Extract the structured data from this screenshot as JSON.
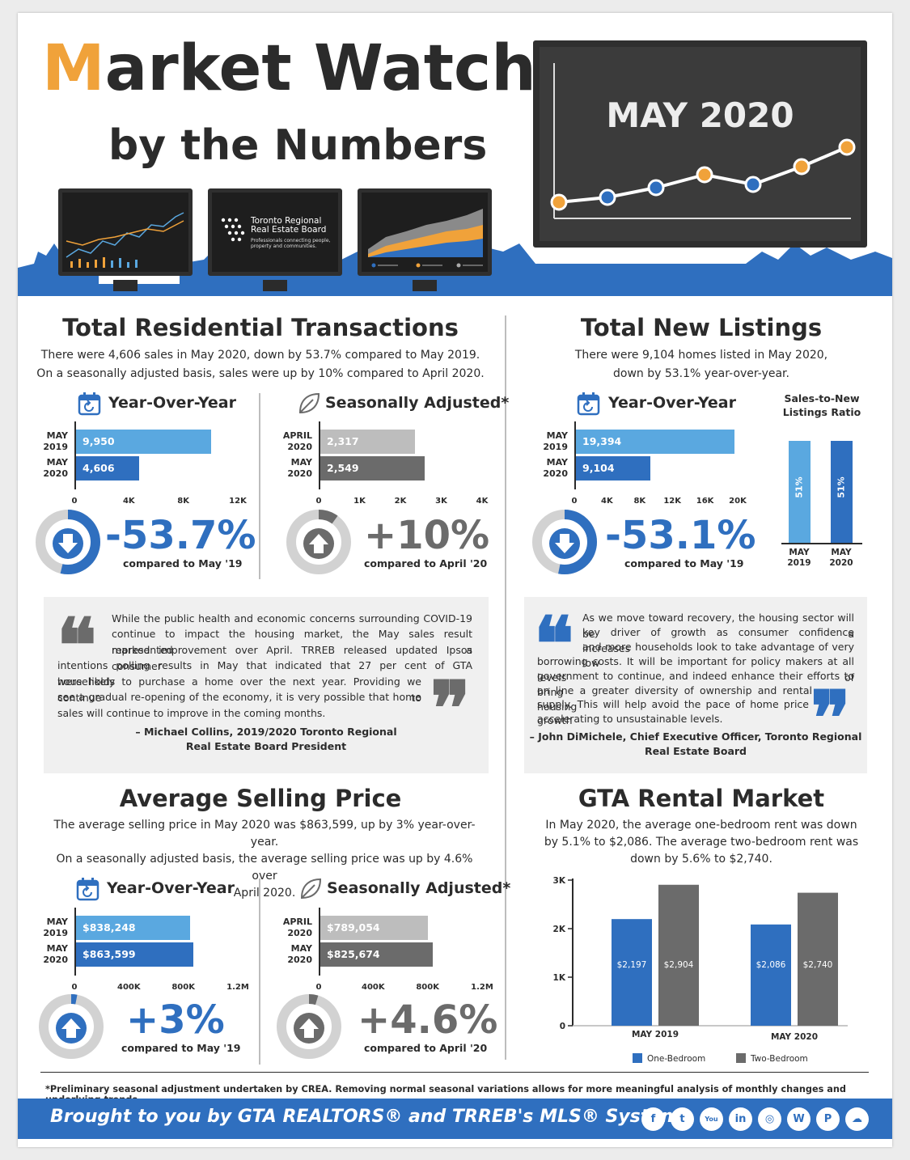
{
  "header": {
    "title_m": "M",
    "title_rest": "arket Watch",
    "subtitle": "by the Numbers",
    "month": "MAY 2020",
    "trreb_name_1": "Toronto Regional",
    "trreb_name_2": "Real Estate Board",
    "trreb_tagline_1": "Professionals connecting people,",
    "trreb_tagline_2": "property and communities."
  },
  "colors": {
    "blue": "#2f6fbf",
    "light_blue": "#5aa8e0",
    "orange": "#f0a23a",
    "dark": "#2b2b2b",
    "gray": "#6b6b6b",
    "light_gray": "#bdbdbd"
  },
  "transactions": {
    "title": "Total Residential Transactions",
    "text1": "There were 4,606 sales in May 2020, down by 53.7% compared to May 2019.",
    "text2": "On a seasonally adjusted basis, sales were up by 10% compared to April 2020.",
    "yoy": {
      "heading": "Year-Over-Year",
      "rows": [
        {
          "label1": "MAY",
          "label2": "2019",
          "value": 9950,
          "display": "9,950"
        },
        {
          "label1": "MAY",
          "label2": "2020",
          "value": 4606,
          "display": "4,606"
        }
      ],
      "ticks": [
        "0",
        "4K",
        "8K",
        "12K"
      ],
      "max": 12000,
      "pct": "-53.7%",
      "pct_value": 53.7,
      "compare": "compared to May '19"
    },
    "sa": {
      "heading": "Seasonally Adjusted*",
      "rows": [
        {
          "label1": "APRIL",
          "label2": "2020",
          "value": 2317,
          "display": "2,317"
        },
        {
          "label1": "MAY",
          "label2": "2020",
          "value": 2549,
          "display": "2,549"
        }
      ],
      "ticks": [
        "0",
        "1K",
        "2K",
        "3K",
        "4K"
      ],
      "max": 4000,
      "pct": "+10%",
      "pct_value": 10,
      "compare": "compared to April '20"
    }
  },
  "listings": {
    "title": "Total New Listings",
    "text1": "There were 9,104 homes listed in May 2020,",
    "text2": "down by 53.1% year-over-year.",
    "yoy": {
      "heading": "Year-Over-Year",
      "rows": [
        {
          "label1": "MAY",
          "label2": "2019",
          "value": 19394,
          "display": "19,394"
        },
        {
          "label1": "MAY",
          "label2": "2020",
          "value": 9104,
          "display": "9,104"
        }
      ],
      "ticks": [
        "0",
        "4K",
        "8K",
        "12K",
        "16K",
        "20K"
      ],
      "max": 20000,
      "pct": "-53.1%",
      "pct_value": 53.1,
      "compare": "compared to May '19"
    },
    "ratio": {
      "title1": "Sales-to-New",
      "title2": "Listings Ratio",
      "bars": [
        {
          "value": "51%",
          "label1": "MAY",
          "label2": "2019"
        },
        {
          "value": "51%",
          "label1": "MAY",
          "label2": "2020"
        }
      ]
    }
  },
  "quote1": {
    "lines": [
      "While the public health and economic concerns surrounding COVID-19",
      "continue to impact the housing market, the May sales result represented a",
      "marked improvement over April. TRREB released updated Ipsos consumer",
      "intentions polling results in May that indicated that 27 per cent of GTA households",
      "were likely to purchase a home over the next year. Providing we continue to",
      "see a gradual re-opening of the economy, it is very possible that home",
      "sales will continue to improve in the coming months."
    ],
    "author1": "– Michael Collins, 2019/2020 Toronto Regional",
    "author2": "Real Estate Board President"
  },
  "quote2": {
    "lines": [
      "As we move toward recovery, the housing sector will be a",
      "key driver of growth as consumer confidence increases",
      "and more households look to take advantage of very low",
      "borrowing costs. It will be important for policy makers at all levels of",
      "government to continue, and indeed enhance their efforts to bring",
      "on line a greater diversity of ownership and rental housing",
      "supply. This will help avoid the pace of home price growth",
      "accelerating to unsustainable levels."
    ],
    "author1": "– John DiMichele, Chief Executive Officer, Toronto Regional",
    "author2": "Real Estate Board"
  },
  "price": {
    "title": "Average Selling Price",
    "text1": "The average selling price in May 2020 was $863,599, up by 3% year-over-year.",
    "text2": "On a seasonally adjusted basis, the average selling price was up by 4.6% over",
    "text3": "April 2020.",
    "yoy": {
      "heading": "Year-Over-Year",
      "rows": [
        {
          "label1": "MAY",
          "label2": "2019",
          "value": 838248,
          "display": "$838,248"
        },
        {
          "label1": "MAY",
          "label2": "2020",
          "value": 863599,
          "display": "$863,599"
        }
      ],
      "ticks": [
        "0",
        "400K",
        "800K",
        "1.2M"
      ],
      "max": 1200000,
      "pct": "+3%",
      "pct_value": 3,
      "compare": "compared to May '19"
    },
    "sa": {
      "heading": "Seasonally Adjusted*",
      "rows": [
        {
          "label1": "APRIL",
          "label2": "2020",
          "value": 789054,
          "display": "$789,054"
        },
        {
          "label1": "MAY",
          "label2": "2020",
          "value": 825674,
          "display": "$825,674"
        }
      ],
      "ticks": [
        "0",
        "400K",
        "800K",
        "1.2M"
      ],
      "max": 1200000,
      "pct": "+4.6%",
      "pct_value": 4.6,
      "compare": "compared to April '20"
    }
  },
  "rental": {
    "title": "GTA Rental Market",
    "text1": "In May 2020, the average one-bedroom rent was down",
    "text2": "by 5.1% to $2,086.  The average two-bedroom rent was",
    "text3": "down by 5.6% to $2,740."
  },
  "chart_data": {
    "type": "bar",
    "title": "GTA Rental Market",
    "categories": [
      "MAY 2019",
      "MAY 2020"
    ],
    "series": [
      {
        "name": "One-Bedroom",
        "values": [
          2197,
          2086
        ],
        "labels": [
          "$2,197",
          "$2,086"
        ]
      },
      {
        "name": "Two-Bedroom",
        "values": [
          2904,
          2740
        ],
        "labels": [
          "$2,904",
          "$2,740"
        ]
      }
    ],
    "yticks": [
      "0",
      "1K",
      "2K",
      "3K"
    ],
    "ylim": [
      0,
      3000
    ]
  },
  "footnote": "*Preliminary seasonal adjustment undertaken by CREA. Removing normal seasonal variations allows for more meaningful analysis of monthly changes and underlying trends.",
  "footer": {
    "text": "Brought to you by GTA REALTORS® and TRREB's MLS® System",
    "social": [
      {
        "icon": "facebook-icon",
        "glyph": "f"
      },
      {
        "icon": "twitter-icon",
        "glyph": "t"
      },
      {
        "icon": "youtube-icon",
        "glyph": "You"
      },
      {
        "icon": "linkedin-icon",
        "glyph": "in"
      },
      {
        "icon": "instagram-icon",
        "glyph": "◎"
      },
      {
        "icon": "wordpress-icon",
        "glyph": "W"
      },
      {
        "icon": "pinterest-icon",
        "glyph": "P"
      },
      {
        "icon": "soundcloud-icon",
        "glyph": "☁"
      }
    ]
  }
}
